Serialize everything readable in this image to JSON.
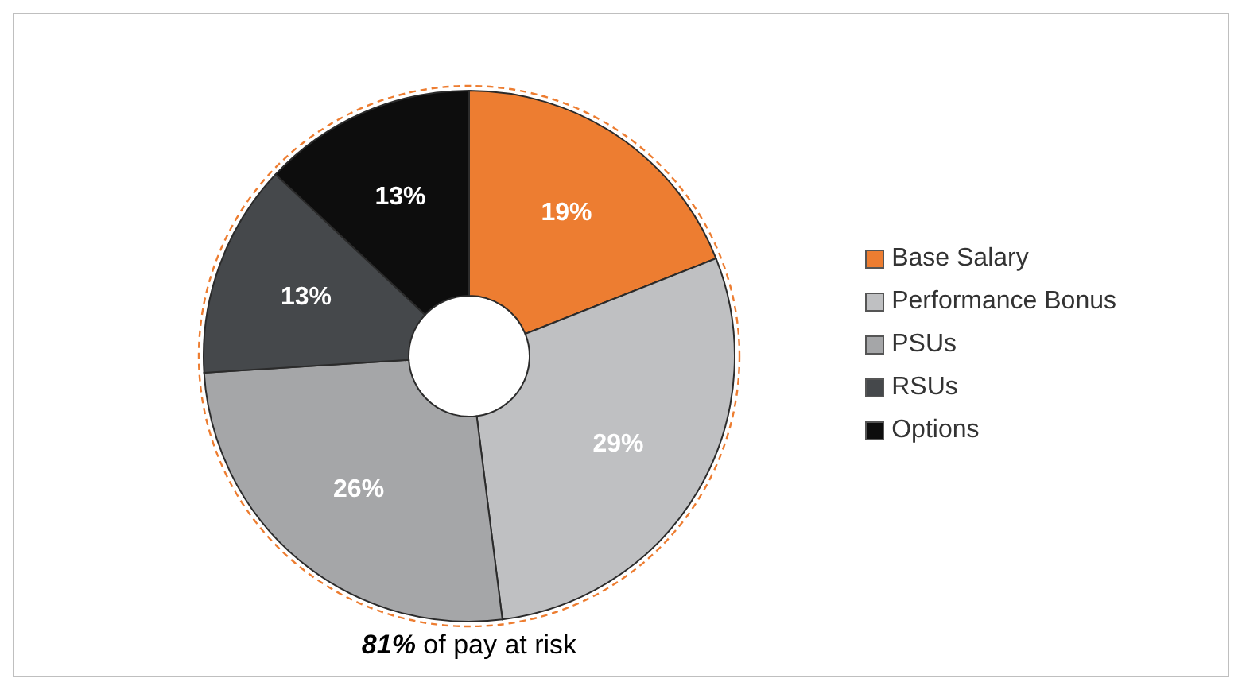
{
  "chart_data": {
    "type": "donut",
    "categories": [
      "Base Salary",
      "Performance Bonus",
      "PSUs",
      "RSUs",
      "Options"
    ],
    "values": [
      19,
      29,
      26,
      13,
      13
    ],
    "colors": [
      "#ed7d31",
      "#bfc0c2",
      "#a5a6a8",
      "#45484b",
      "#0d0d0d"
    ],
    "value_labels": [
      "19%",
      "29%",
      "26%",
      "13%",
      "13%"
    ],
    "legend": "right",
    "annotations": [
      "81% of pay at risk"
    ]
  }
}
